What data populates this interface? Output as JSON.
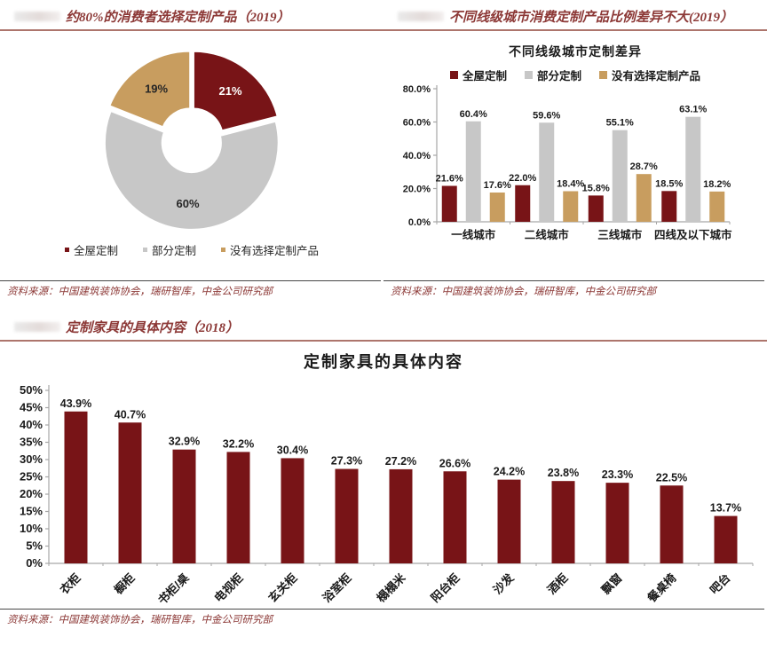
{
  "colors": {
    "maroon": "#781417",
    "gray": "#c7c7c7",
    "tan": "#c89d5f",
    "title_red": "#8c3836",
    "title_rule": "#ad756c",
    "source_rule": "#474747",
    "axis_gray": "#a6a6a6"
  },
  "panels": {
    "top_left": {
      "title": "约80%的消费者选择定制产品（2019）",
      "source": "资料来源：中国建筑装饰协会，瑞研智库，中金公司研究部"
    },
    "top_right": {
      "title": "不同线级城市消费定制产品比例差异不大(2019）",
      "source": "资料来源：中国建筑装饰协会，瑞研智库，中金公司研究部"
    },
    "bottom": {
      "title": "定制家具的具体内容（2018）",
      "source": "资料来源：中国建筑装饰协会，瑞研智库，中金公司研究部"
    }
  },
  "chart_data": [
    {
      "id": "consumer-custom-donut",
      "type": "pie",
      "donut": true,
      "labels": [
        "全屋定制",
        "部分定制",
        "没有选择定制产品"
      ],
      "values": [
        21,
        60,
        19
      ],
      "value_labels": [
        "21%",
        "60%",
        "19%"
      ],
      "colors": [
        "#781417",
        "#c7c7c7",
        "#c89d5f"
      ],
      "label_colors": [
        "#ffffff",
        "#262626",
        "#262626"
      ],
      "legend_position": "bottom"
    },
    {
      "id": "city-tier-bars",
      "type": "bar",
      "title": "不同线级城市定制差异",
      "categories": [
        "一线城市",
        "二线城市",
        "三线城市",
        "四线及以下城市"
      ],
      "series": [
        {
          "name": "全屋定制",
          "color": "#781417",
          "values": [
            21.6,
            22.0,
            15.8,
            18.5
          ]
        },
        {
          "name": "部分定制",
          "color": "#c7c7c7",
          "values": [
            60.4,
            59.6,
            55.1,
            63.1
          ]
        },
        {
          "name": "没有选择定制产品",
          "color": "#c89d5f",
          "values": [
            17.6,
            18.4,
            28.7,
            18.2
          ]
        }
      ],
      "ylim": [
        0,
        80
      ],
      "ytick_step": 20,
      "ytick_format": "percent1",
      "grid": false,
      "legend_position": "top"
    },
    {
      "id": "furniture-content-bars",
      "type": "bar",
      "title": "定制家具的具体内容",
      "categories": [
        "衣柜",
        "橱柜",
        "书柜/桌",
        "电视柜",
        "玄关柜",
        "浴室柜",
        "榻榻米",
        "阳台柜",
        "沙发",
        "酒柜",
        "飘窗",
        "餐桌椅",
        "吧台"
      ],
      "values": [
        43.9,
        40.7,
        32.9,
        32.2,
        30.4,
        27.3,
        27.2,
        26.6,
        24.2,
        23.8,
        23.3,
        22.5,
        13.7
      ],
      "color": "#781417",
      "ylim": [
        0,
        50
      ],
      "ytick_step": 5,
      "ytick_format": "percent0",
      "grid": false,
      "xlabel_rotation": -45
    }
  ]
}
